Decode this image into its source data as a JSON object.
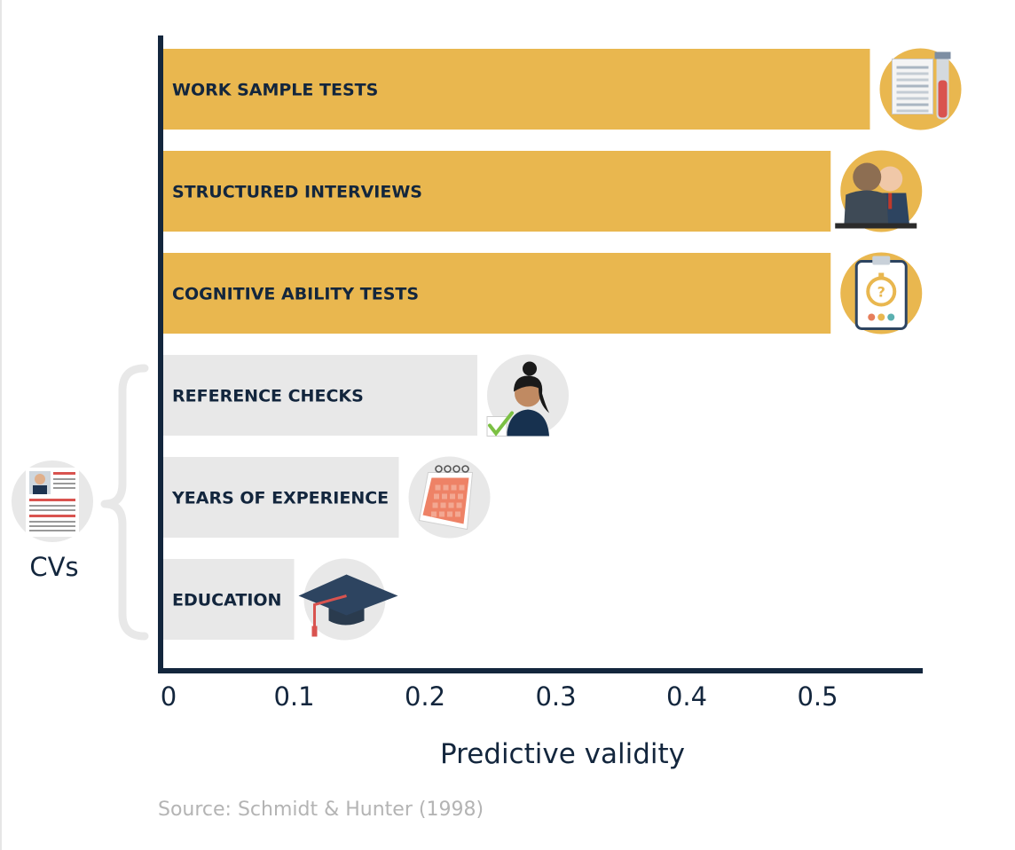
{
  "chart_data": {
    "type": "bar",
    "orientation": "horizontal",
    "categories": [
      "WORK SAMPLE TESTS",
      "STRUCTURED INTERVIEWS",
      "COGNITIVE ABILITY TESTS",
      "REFERENCE CHECKS",
      "YEARS OF EXPERIENCE",
      "EDUCATION"
    ],
    "values": [
      0.54,
      0.51,
      0.51,
      0.24,
      0.18,
      0.1
    ],
    "highlight": [
      true,
      true,
      true,
      false,
      false,
      false
    ],
    "icons": [
      "test-sheet-icon",
      "interview-icon",
      "clipboard-stopwatch-icon",
      "woman-checkmark-icon",
      "calendar-icon",
      "graduation-cap-icon"
    ],
    "xlabel": "Predictive validity",
    "xlim": [
      0,
      0.57
    ],
    "xticks": [
      "0",
      "0.1",
      "0.2",
      "0.3",
      "0.4",
      "0.5"
    ],
    "grid": false,
    "group_annotation": "CVs",
    "source": "Source: Schmidt & Hunter (1998)",
    "colors": {
      "highlight": "#e9b74f",
      "normal": "#e8e8e8",
      "axis": "#13263d",
      "text": "#13263d",
      "icon_bg_highlight": "#e9b74f",
      "icon_bg_normal": "#e8e8e8"
    }
  }
}
